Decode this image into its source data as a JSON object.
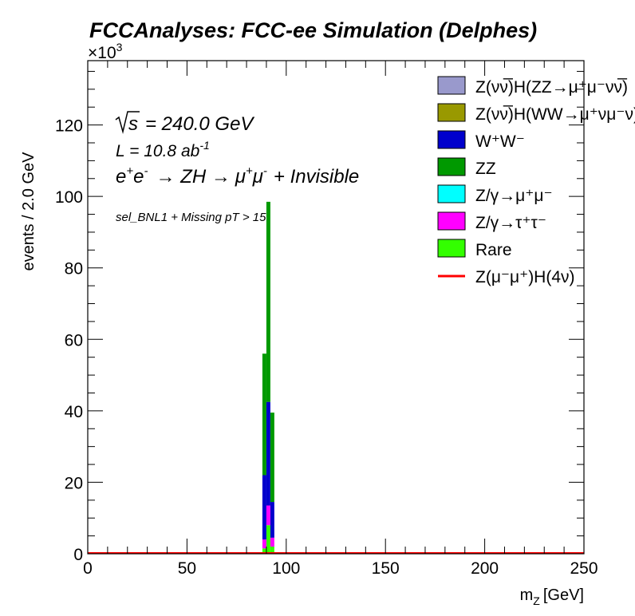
{
  "title": "FCCAnalyses: FCC-ee Simulation (Delphes)",
  "annotations": {
    "sqrt_s": "= 240.0 GeV",
    "lumi_prefix": "L = 10.8 ab",
    "lumi_exp": "-1",
    "process_e": "e",
    "process_eplus": "+",
    "process_e2": "e",
    "process_eminus": "-",
    "process_zh": "→ ZH →",
    "process_mu": "μ",
    "process_muplus": "+",
    "process_mu2": "μ",
    "process_muminus": "-",
    "process_tail": "+ Invisible",
    "selection": "sel_BNL1 + Missing pT > 15"
  },
  "chart_data": {
    "type": "bar",
    "stacked": true,
    "xlabel": "m_Z [GeV]",
    "xlabel_main": "m",
    "xlabel_sub": "Z",
    "xlabel_unit": "[GeV]",
    "ylabel": "events / 2.0 GeV",
    "y_multiplier_base": "×10",
    "y_multiplier_exp": "3",
    "xlim": [
      0,
      250
    ],
    "ylim": [
      0,
      138000
    ],
    "xticks": [
      0,
      50,
      100,
      150,
      200,
      250
    ],
    "yticks": [
      0,
      20000,
      40000,
      60000,
      80000,
      100000,
      120000
    ],
    "ytick_labels": [
      "0",
      "20",
      "40",
      "60",
      "80",
      "100",
      "120"
    ],
    "bin_width": 2,
    "bin_edges": [
      86,
      88,
      90,
      92,
      94,
      96
    ],
    "series": [
      {
        "name": "Rare",
        "color": "#33ff00",
        "values": [
          0,
          1500,
          8000,
          2000,
          0
        ]
      },
      {
        "name": "Z/γ→τ⁺τ⁻",
        "color": "#ff00ff",
        "values": [
          0,
          2500,
          5500,
          2500,
          0
        ]
      },
      {
        "name": "Z/γ→μ⁺μ⁻",
        "color": "#00ffff",
        "values": [
          0,
          0,
          0,
          0,
          0
        ]
      },
      {
        "name": "W⁺W⁻",
        "color": "#0000cc",
        "values": [
          0,
          18000,
          29000,
          10000,
          0
        ]
      },
      {
        "name": "ZZ",
        "color": "#009900",
        "values": [
          0,
          34000,
          56000,
          25000,
          0
        ]
      },
      {
        "name": "Z(νν̅)H(WW→μ⁺νμ⁻ν)",
        "color": "#999900",
        "values": [
          0,
          0,
          0,
          0,
          0
        ]
      },
      {
        "name": "Z(νν̅)H(ZZ→μ⁺μ⁻νν̅)",
        "color": "#9999cc",
        "values": [
          0,
          0,
          0,
          0,
          0
        ]
      }
    ],
    "signal_line": {
      "name": "Z(μ⁻μ⁺)H(4ν)",
      "color": "#ff0000",
      "value": 0
    }
  },
  "legend": [
    {
      "label": "Z(νν̅)H(ZZ→μ⁺μ⁻νν̅)",
      "color": "#9999cc",
      "kind": "box"
    },
    {
      "label": "Z(νν̅)H(WW→μ⁺νμ⁻ν)",
      "color": "#999900",
      "kind": "box"
    },
    {
      "label": "W⁺W⁻",
      "color": "#0000cc",
      "kind": "box"
    },
    {
      "label": "ZZ",
      "color": "#009900",
      "kind": "box"
    },
    {
      "label": "Z/γ→μ⁺μ⁻",
      "color": "#00ffff",
      "kind": "box"
    },
    {
      "label": "Z/γ→τ⁺τ⁻",
      "color": "#ff00ff",
      "kind": "box"
    },
    {
      "label": "Rare",
      "color": "#33ff00",
      "kind": "box"
    },
    {
      "label": "Z(μ⁻μ⁺)H(4ν)",
      "color": "#ff0000",
      "kind": "line"
    }
  ]
}
